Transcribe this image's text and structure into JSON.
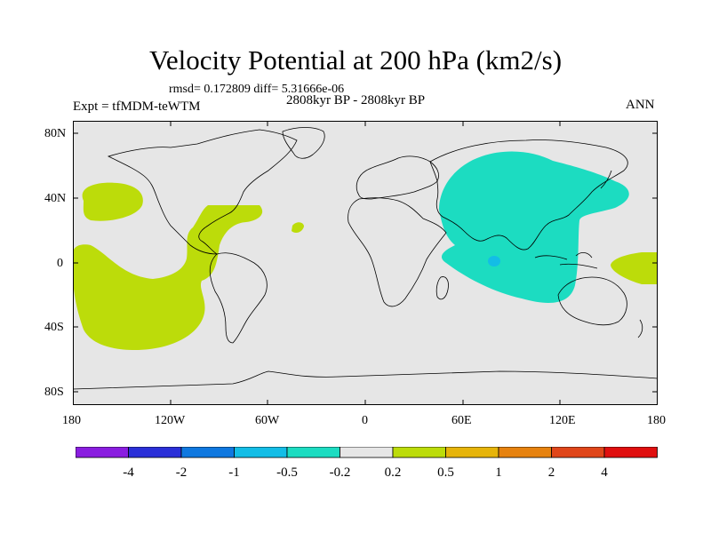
{
  "title": "Velocity Potential at 200 hPa (km2/s)",
  "stats": "rmsd= 0.172809 diff= 5.31666e-06",
  "expt": "Expt = tfMDM-teWTM",
  "period": "2808kyr BP - 2808kyr BP",
  "season": "ANN",
  "lat_labels": [
    "80N",
    "40N",
    "0",
    "40S",
    "80S"
  ],
  "lon_labels": [
    "180",
    "120W",
    "60W",
    "0",
    "60E",
    "120E",
    "180"
  ],
  "colorbar": {
    "labels": [
      "-4",
      "-2",
      "-1",
      "-0.5",
      "-0.2",
      "0.2",
      "0.5",
      "1",
      "2",
      "4"
    ],
    "colors": [
      "#8a1de0",
      "#2a2fd8",
      "#0f78e0",
      "#13bde6",
      "#1cdcc1",
      "#e6e6e6",
      "#bcdc0a",
      "#e6b40a",
      "#e6820f",
      "#e0461a",
      "#e00f0f"
    ]
  },
  "map_colors": {
    "background": "#e6e6e6",
    "positive": "#bcdc0a",
    "negative": "#1cdcc1",
    "strong_negative": "#13bde6"
  }
}
